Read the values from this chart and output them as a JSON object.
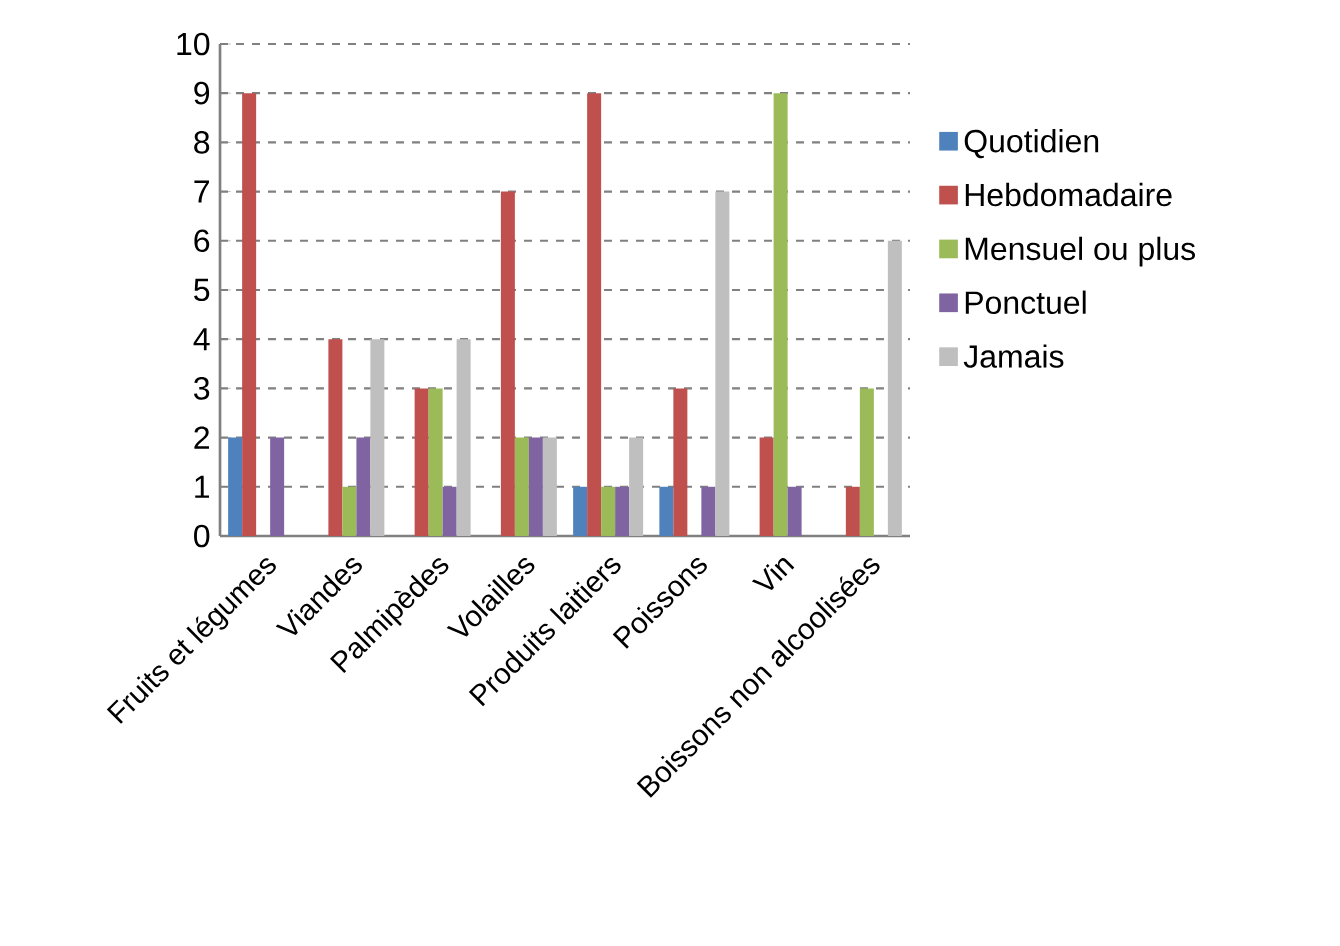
{
  "chart_data": {
    "type": "bar",
    "categories": [
      "Fruits et légumes",
      "Viandes",
      "Palmipèdes",
      "Volailles",
      "Produits laitiers",
      "Poissons",
      "Vin",
      "Boissons non alcoolisées"
    ],
    "series": [
      {
        "name": "Quotidien",
        "color": "#4f81bd",
        "values": [
          2,
          0,
          0,
          0,
          1,
          1,
          0,
          0
        ]
      },
      {
        "name": "Hebdomadaire",
        "color": "#c0504d",
        "values": [
          9,
          4,
          3,
          7,
          9,
          3,
          2,
          1
        ]
      },
      {
        "name": "Mensuel ou plus",
        "color": "#9bbb59",
        "values": [
          0,
          1,
          3,
          2,
          1,
          0,
          9,
          3
        ]
      },
      {
        "name": "Ponctuel",
        "color": "#8064a2",
        "values": [
          2,
          2,
          1,
          2,
          1,
          1,
          1,
          0
        ]
      },
      {
        "name": "Jamais",
        "color": "#bfbfbf",
        "values": [
          0,
          4,
          4,
          2,
          2,
          7,
          0,
          6
        ]
      }
    ],
    "ylim": [
      0,
      10
    ],
    "yticks": [
      0,
      1,
      2,
      3,
      4,
      5,
      6,
      7,
      8,
      9,
      10
    ],
    "grid": "y",
    "legend": "right"
  }
}
